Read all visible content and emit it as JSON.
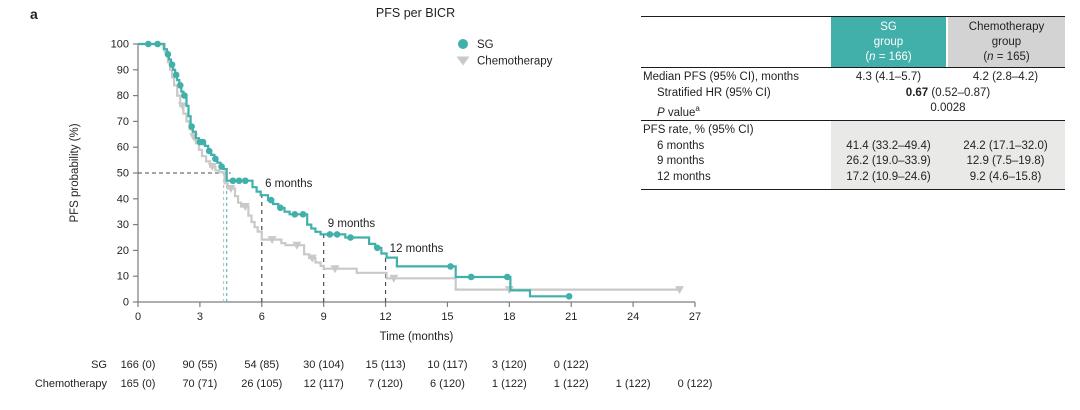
{
  "panel_label": "a",
  "title": "PFS per BICR",
  "colors": {
    "sg": "#41b0aa",
    "chemo": "#c9c9c9",
    "chemo_median_dash": "#bdbdbd",
    "reference_dash": "#4c4c4c",
    "axis": "#7c7d80",
    "text": "#231f20",
    "sg_header_bg": "#41b0aa",
    "chemo_header_bg": "#d3d3d3",
    "table_shade": "#e9e9e8"
  },
  "chart_data": {
    "type": "line",
    "subtype": "kaplan-meier-step",
    "title": "PFS per BICR",
    "xlabel": "Time (months)",
    "ylabel": "PFS probability (%)",
    "xlim": [
      0,
      27
    ],
    "ylim": [
      0,
      100
    ],
    "x_ticks": [
      0,
      3,
      6,
      9,
      12,
      15,
      18,
      21,
      24,
      27
    ],
    "y_ticks": [
      0,
      10,
      20,
      30,
      40,
      50,
      60,
      70,
      80,
      90,
      100
    ],
    "grid": false,
    "legend_position": "top-right-inside",
    "series": [
      {
        "name": "Chemotherapy",
        "marker": "triangle",
        "color": "#c9c9c9",
        "median_months": 4.15,
        "steps": [
          [
            0,
            100
          ],
          [
            1.3,
            97
          ],
          [
            1.45,
            93
          ],
          [
            1.55,
            90
          ],
          [
            1.65,
            87
          ],
          [
            1.75,
            84
          ],
          [
            1.9,
            80
          ],
          [
            2.05,
            76
          ],
          [
            2.2,
            73
          ],
          [
            2.35,
            70
          ],
          [
            2.5,
            67
          ],
          [
            2.65,
            64
          ],
          [
            2.8,
            61.5
          ],
          [
            2.95,
            59
          ],
          [
            3.1,
            56.5
          ],
          [
            3.3,
            54.5
          ],
          [
            3.5,
            52.5
          ],
          [
            3.75,
            51
          ],
          [
            3.95,
            50.3
          ],
          [
            4.2,
            46
          ],
          [
            4.35,
            44
          ],
          [
            4.7,
            41
          ],
          [
            4.85,
            38.5
          ],
          [
            5.0,
            37
          ],
          [
            5.35,
            33.5
          ],
          [
            5.5,
            31
          ],
          [
            5.65,
            29
          ],
          [
            5.8,
            27.3
          ],
          [
            6.0,
            24.2
          ],
          [
            6.95,
            22.8
          ],
          [
            7.15,
            22
          ],
          [
            8.05,
            18.5
          ],
          [
            8.3,
            17
          ],
          [
            8.6,
            15.3
          ],
          [
            8.85,
            14
          ],
          [
            9.0,
            12.9
          ],
          [
            10.6,
            11.3
          ],
          [
            12.05,
            9.2
          ],
          [
            15.4,
            4.8
          ],
          [
            26.3,
            4.8
          ]
        ],
        "censor_times": [
          2.15,
          2.7,
          3.6,
          4.5,
          5.2,
          6.5,
          7.7,
          8.45,
          9.55,
          12.4,
          18.0,
          26.25
        ]
      },
      {
        "name": "SG",
        "marker": "circle",
        "color": "#41b0aa",
        "median_months": 4.3,
        "steps": [
          [
            0,
            100
          ],
          [
            1.25,
            98
          ],
          [
            1.4,
            96
          ],
          [
            1.5,
            94
          ],
          [
            1.6,
            92
          ],
          [
            1.7,
            90
          ],
          [
            1.8,
            88
          ],
          [
            1.9,
            86
          ],
          [
            2.0,
            84
          ],
          [
            2.1,
            81.5
          ],
          [
            2.2,
            80
          ],
          [
            2.35,
            76
          ],
          [
            2.45,
            72
          ],
          [
            2.55,
            68
          ],
          [
            2.65,
            66
          ],
          [
            2.8,
            63.5
          ],
          [
            2.95,
            62
          ],
          [
            3.25,
            60.5
          ],
          [
            3.4,
            58.5
          ],
          [
            3.55,
            57
          ],
          [
            3.7,
            55.5
          ],
          [
            3.85,
            54
          ],
          [
            4.0,
            52.5
          ],
          [
            4.15,
            51.5
          ],
          [
            4.3,
            47
          ],
          [
            5.55,
            44.5
          ],
          [
            5.75,
            42.8
          ],
          [
            5.95,
            41.4
          ],
          [
            6.3,
            39.5
          ],
          [
            6.55,
            38
          ],
          [
            6.8,
            36.5
          ],
          [
            7.1,
            35
          ],
          [
            7.35,
            34
          ],
          [
            8.2,
            30
          ],
          [
            8.4,
            28.5
          ],
          [
            8.6,
            27.2
          ],
          [
            8.85,
            26.2
          ],
          [
            10.05,
            25
          ],
          [
            11.2,
            22.5
          ],
          [
            11.5,
            21
          ],
          [
            11.8,
            18.8
          ],
          [
            12.05,
            17.2
          ],
          [
            12.55,
            13.8
          ],
          [
            15.4,
            9.7
          ],
          [
            18.05,
            4.5
          ],
          [
            19.0,
            2.2
          ],
          [
            21.0,
            2.2
          ]
        ],
        "censor_times": [
          0.5,
          0.95,
          1.45,
          1.65,
          1.85,
          2.05,
          2.25,
          2.6,
          3.0,
          3.15,
          3.45,
          3.75,
          4.05,
          4.6,
          4.9,
          5.2,
          6.45,
          6.9,
          7.6,
          8.0,
          9.3,
          9.65,
          10.3,
          11.6,
          15.15,
          16.15,
          17.9,
          20.9
        ]
      }
    ],
    "annotations": [
      {
        "text": "6 months",
        "t": 6.16,
        "p_baseline": 44.5
      },
      {
        "text": "9 months",
        "t": 9.2,
        "p_baseline": 29.0
      },
      {
        "text": "12 months",
        "t": 12.2,
        "p_baseline": 19.4
      }
    ],
    "reference": {
      "median_level_pct": 50,
      "timepoint_lines": [
        {
          "t": 6,
          "p": 41.4
        },
        {
          "t": 9,
          "p": 26.2
        },
        {
          "t": 12,
          "p": 17.2
        }
      ]
    }
  },
  "legend": [
    {
      "label": "SG",
      "marker": "circle"
    },
    {
      "label": "Chemotherapy",
      "marker": "triangle"
    }
  ],
  "risk_table": {
    "rows": [
      {
        "label": "SG",
        "months": [
          0,
          3,
          6,
          9,
          12,
          15,
          18,
          21
        ],
        "values": [
          "166 (0)",
          "90 (55)",
          "54 (85)",
          "30 (104)",
          "15 (113)",
          "10 (117)",
          "3 (120)",
          "0 (122)"
        ]
      },
      {
        "label": "Chemotherapy",
        "months": [
          0,
          3,
          6,
          9,
          12,
          15,
          18,
          21,
          24,
          27
        ],
        "values": [
          "165 (0)",
          "70 (71)",
          "26 (105)",
          "12 (117)",
          "7 (120)",
          "6 (120)",
          "1 (122)",
          "1 (122)",
          "1 (122)",
          "0 (122)"
        ]
      }
    ]
  },
  "stats_table": {
    "header": {
      "sg": {
        "l1": "SG",
        "l2": "group",
        "n_pre": "(",
        "n_var": "n",
        "n_post": " = 166)"
      },
      "chemo": {
        "l1": "Chemotherapy",
        "l2": "group",
        "n_pre": "(",
        "n_var": "n",
        "n_post": " = 165)"
      }
    },
    "rows": {
      "median": {
        "label": "Median PFS (95% CI), months",
        "sg": "4.3 (4.1–5.7)",
        "chemo": "4.2 (2.8–4.2)"
      },
      "hr": {
        "label": "Stratified HR (95% CI)",
        "bold": "0.67",
        "rest": " (0.52–0.87)"
      },
      "pvalue": {
        "label_var": "P",
        "label_rest": " value",
        "label_sup": "a",
        "value": "0.0028"
      },
      "rate_header": {
        "label": "PFS rate, % (95% CI)"
      },
      "m6": {
        "label": "6 months",
        "sg": "41.4 (33.2–49.4)",
        "chemo": "24.2 (17.1–32.0)"
      },
      "m9": {
        "label": "9 months",
        "sg": "26.2 (19.0–33.9)",
        "chemo": "12.9 (7.5–19.8)"
      },
      "m12": {
        "label": "12 months",
        "sg": "17.2 (10.9–24.6)",
        "chemo": "9.2 (4.6–15.8)"
      }
    }
  }
}
